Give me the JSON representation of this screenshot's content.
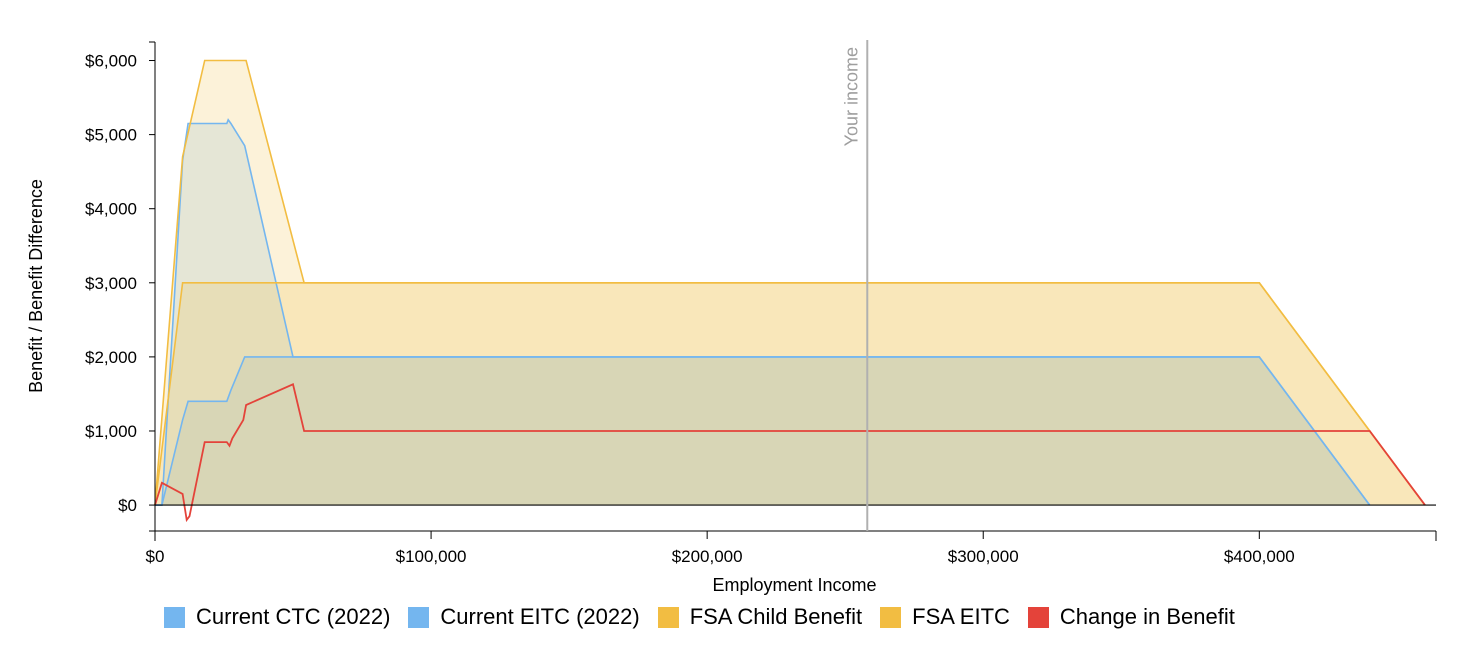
{
  "chart_data": {
    "type": "area",
    "xlabel": "Employment Income",
    "ylabel": "Benefit / Benefit Difference",
    "xlim": [
      0,
      464000
    ],
    "ylim": [
      -350,
      6250
    ],
    "x_ticks": [
      0,
      100000,
      200000,
      300000,
      400000
    ],
    "x_tick_labels": [
      "$0",
      "$100,000",
      "$200,000",
      "$300,000",
      "$400,000"
    ],
    "y_ticks": [
      0,
      1000,
      2000,
      3000,
      4000,
      5000,
      6000
    ],
    "y_tick_labels": [
      "$0",
      "$1,000",
      "$2,000",
      "$3,000",
      "$4,000",
      "$5,000",
      "$6,000"
    ],
    "your_income": {
      "x": 258000,
      "label": "Your income"
    },
    "grid": false,
    "legend_position": "bottom",
    "series": [
      {
        "name": "Current CTC (2022)",
        "kind": "area",
        "color": "#74b6ef",
        "points": [
          [
            0,
            0
          ],
          [
            2500,
            0
          ],
          [
            10000,
            1150
          ],
          [
            12000,
            1400
          ],
          [
            26000,
            1400
          ],
          [
            27500,
            1550
          ],
          [
            32500,
            2000
          ],
          [
            400000,
            2000
          ],
          [
            440000,
            0
          ]
        ]
      },
      {
        "name": "Current EITC (2022)",
        "kind": "area",
        "color": "#74b6ef",
        "points": [
          [
            0,
            0
          ],
          [
            2500,
            0
          ],
          [
            10000,
            4650
          ],
          [
            12000,
            5150
          ],
          [
            26000,
            5150
          ],
          [
            26500,
            5200
          ],
          [
            27500,
            5150
          ],
          [
            32500,
            4850
          ],
          [
            50000,
            2000
          ],
          [
            400000,
            2000
          ],
          [
            440000,
            0
          ]
        ]
      },
      {
        "name": "FSA Child Benefit",
        "kind": "area",
        "color": "#f2bd42",
        "points": [
          [
            0,
            0
          ],
          [
            10000,
            3000
          ],
          [
            400000,
            3000
          ],
          [
            460000,
            0
          ]
        ]
      },
      {
        "name": "FSA EITC",
        "kind": "area",
        "color": "#f2bd42",
        "points": [
          [
            0,
            0
          ],
          [
            10000,
            4700
          ],
          [
            18000,
            6000
          ],
          [
            33000,
            6000
          ],
          [
            54000,
            3000
          ],
          [
            400000,
            3000
          ],
          [
            460000,
            0
          ]
        ]
      },
      {
        "name": "Change in Benefit",
        "kind": "line",
        "color": "#e4433a",
        "points": [
          [
            0,
            0
          ],
          [
            2500,
            300
          ],
          [
            10000,
            150
          ],
          [
            11500,
            -200
          ],
          [
            12500,
            -150
          ],
          [
            18000,
            850
          ],
          [
            26000,
            850
          ],
          [
            27000,
            800
          ],
          [
            28000,
            900
          ],
          [
            32000,
            1150
          ],
          [
            33000,
            1350
          ],
          [
            50000,
            1630
          ],
          [
            54000,
            1000
          ],
          [
            440000,
            1000
          ],
          [
            460000,
            0
          ]
        ]
      }
    ]
  }
}
